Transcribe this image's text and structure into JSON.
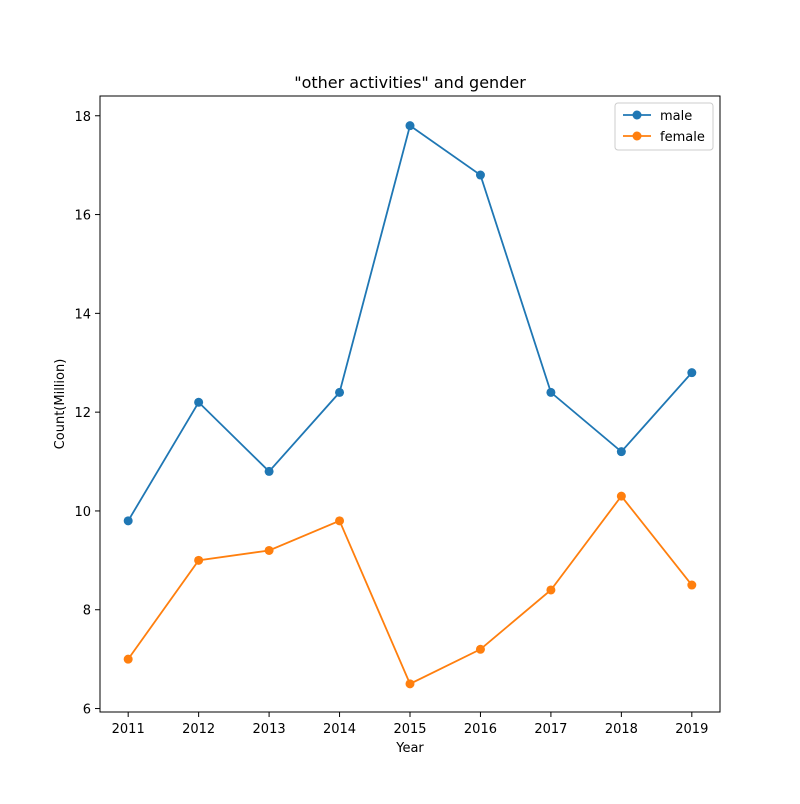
{
  "chart_data": {
    "type": "line",
    "title": "\"other activities\" and gender",
    "xlabel": "Year",
    "ylabel": "Count(Million)",
    "x": [
      2011,
      2012,
      2013,
      2014,
      2015,
      2016,
      2017,
      2018,
      2019
    ],
    "xlim": [
      2010.6,
      2019.4
    ],
    "ylim": [
      5.93,
      18.4
    ],
    "yticks": [
      6,
      8,
      10,
      12,
      14,
      16,
      18
    ],
    "grid": false,
    "legend_position": "upper right",
    "series": [
      {
        "name": "male",
        "color": "#1f77b4",
        "marker": "circle",
        "values": [
          9.8,
          12.2,
          10.8,
          12.4,
          17.8,
          16.8,
          12.4,
          11.2,
          12.8
        ]
      },
      {
        "name": "female",
        "color": "#ff7f0e",
        "marker": "circle",
        "values": [
          7.0,
          9.0,
          9.2,
          9.8,
          6.5,
          7.2,
          8.4,
          10.3,
          8.5
        ]
      }
    ]
  }
}
